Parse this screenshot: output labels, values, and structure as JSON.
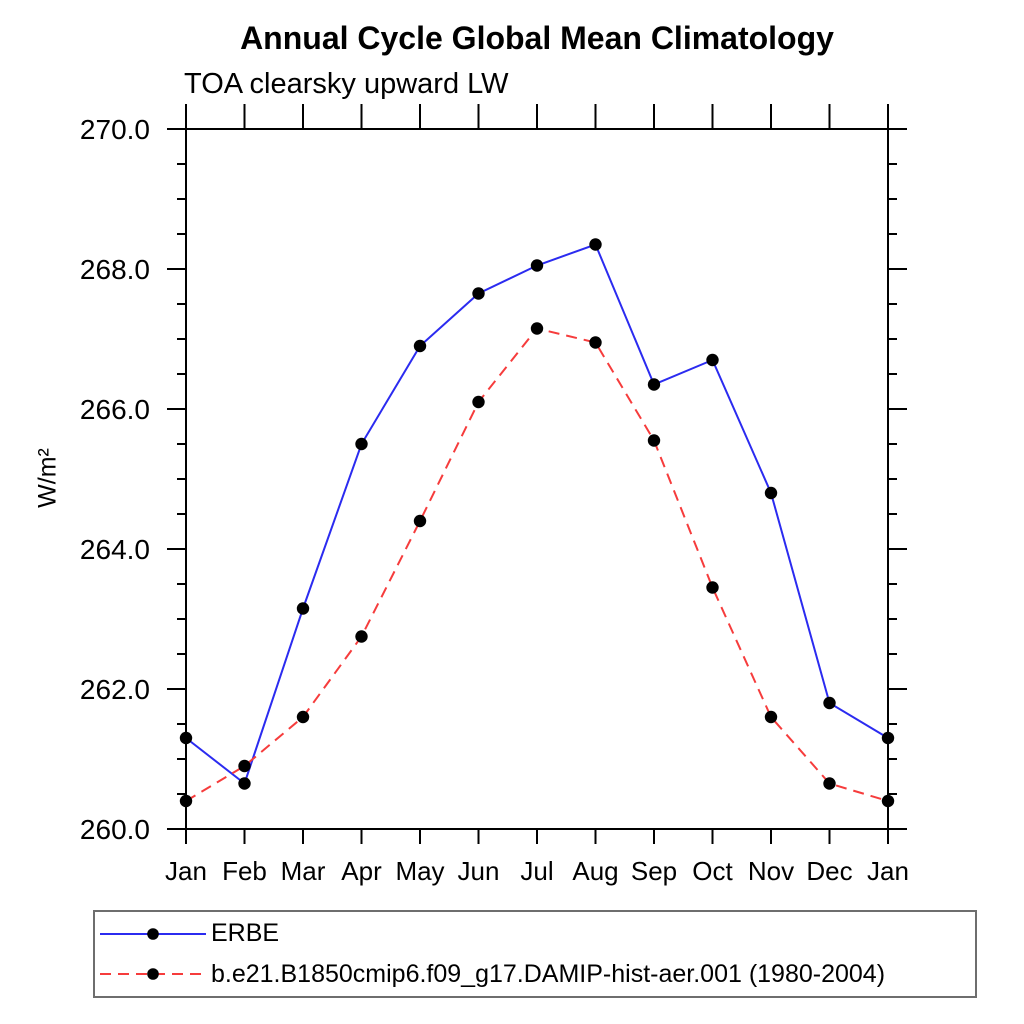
{
  "header": {
    "title": "Annual Cycle Global Mean Climatology",
    "subtitle": "TOA clearsky upward LW"
  },
  "chart_data": {
    "type": "line",
    "title": "Annual Cycle Global Mean Climatology",
    "subtitle": "TOA clearsky upward LW",
    "xlabel": "",
    "ylabel": "W/m²",
    "categories": [
      "Jan",
      "Feb",
      "Mar",
      "Apr",
      "May",
      "Jun",
      "Jul",
      "Aug",
      "Sep",
      "Oct",
      "Nov",
      "Dec",
      "Jan"
    ],
    "ylim": [
      260.0,
      270.0
    ],
    "ytick_major_values": [
      260,
      262,
      264,
      266,
      268,
      270
    ],
    "ytick_major_labels": [
      "260.0",
      "262.0",
      "264.0",
      "266.0",
      "268.0",
      "270.0"
    ],
    "ytick_minor_step": 0.5,
    "grid": false,
    "legend_position": "bottom-left",
    "marker_color": "#000000",
    "axis_color": "#000000",
    "series": [
      {
        "name": "ERBE",
        "color": "#2b2bf0",
        "style": "solid",
        "marker": "circle",
        "values": [
          261.3,
          260.65,
          263.15,
          265.5,
          266.9,
          267.65,
          268.05,
          268.35,
          266.35,
          266.7,
          264.8,
          261.8,
          261.3
        ]
      },
      {
        "name": "b.e21.B1850cmip6.f09_g17.DAMIP-hist-aer.001 (1980-2004)",
        "color": "#f63c3c",
        "style": "dashed",
        "marker": "circle",
        "values": [
          260.4,
          260.9,
          261.6,
          262.75,
          264.4,
          266.1,
          267.15,
          266.95,
          265.55,
          263.45,
          261.6,
          260.65,
          260.4
        ]
      }
    ]
  }
}
